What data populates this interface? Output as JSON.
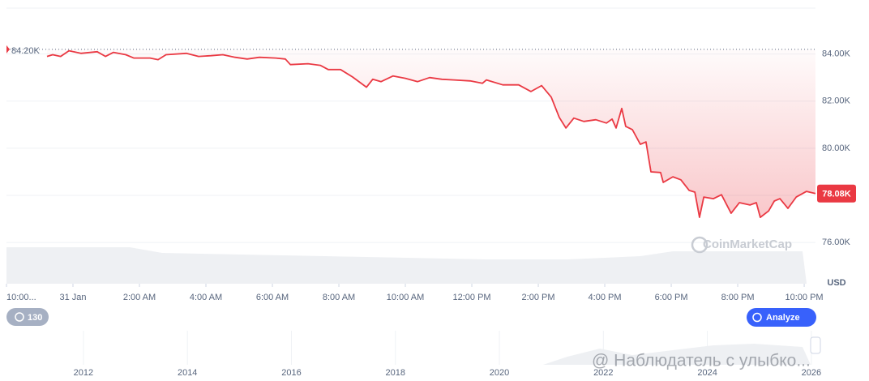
{
  "chart_data": {
    "type": "line",
    "color": "#ea3943",
    "x": [
      -0.78,
      -0.61,
      -0.37,
      -0.12,
      0.24,
      0.73,
      0.98,
      1.22,
      1.59,
      1.83,
      2.32,
      2.56,
      2.8,
      3.41,
      3.78,
      4.15,
      4.51,
      4.88,
      5.24,
      5.61,
      6.1,
      6.39,
      6.54,
      7.07,
      7.44,
      7.68,
      8.05,
      8.41,
      8.83,
      9.02,
      9.27,
      9.63,
      10.0,
      10.37,
      10.73,
      11.1,
      11.46,
      11.95,
      12.32,
      12.44,
      12.93,
      13.41,
      13.78,
      14.1,
      14.39,
      14.63,
      14.83,
      15.07,
      15.37,
      15.73,
      16.05,
      16.22,
      16.34,
      16.51,
      16.63,
      16.83,
      17.07,
      17.24,
      17.39,
      17.68,
      17.76,
      18.05,
      18.29,
      18.54,
      18.71,
      18.85,
      18.98,
      19.27,
      19.51,
      19.8,
      20.05,
      20.37,
      20.56,
      20.68,
      20.93,
      21.1,
      21.27,
      21.51,
      21.76,
      22.07,
      22.34
    ],
    "values": [
      83900,
      83970,
      83900,
      84140,
      84030,
      84100,
      83900,
      84070,
      83970,
      83830,
      83830,
      83760,
      83970,
      84030,
      83900,
      83930,
      83970,
      83860,
      83790,
      83860,
      83830,
      83790,
      83550,
      83590,
      83520,
      83340,
      83340,
      83030,
      82590,
      82930,
      82830,
      83070,
      82970,
      82830,
      83000,
      82930,
      82900,
      82860,
      82760,
      82900,
      82690,
      82690,
      82410,
      82660,
      82170,
      81310,
      80860,
      81280,
      81140,
      81210,
      81070,
      81240,
      80860,
      81690,
      80930,
      80790,
      80170,
      80270,
      79000,
      78970,
      78550,
      78790,
      78660,
      78210,
      78140,
      77070,
      77930,
      77860,
      78030,
      77240,
      77690,
      77590,
      77690,
      77070,
      77340,
      77760,
      77860,
      77450,
      77930,
      78170,
      78080
    ],
    "xlim": [
      -2,
      22.34
    ],
    "ylim": [
      74250,
      85950
    ],
    "yticks": [
      {
        "value": 76000,
        "label": "76.00K"
      },
      {
        "value": 78000,
        "label": "78.00K"
      },
      {
        "value": 80000,
        "label": "80.00K"
      },
      {
        "value": 82000,
        "label": "82.00K"
      },
      {
        "value": 84000,
        "label": "84.00K"
      }
    ],
    "xticks": [
      {
        "value": -2,
        "label": "10:00..."
      },
      {
        "value": 0,
        "label": "31 Jan"
      },
      {
        "value": 2,
        "label": "2:00 AM"
      },
      {
        "value": 4,
        "label": "4:00 AM"
      },
      {
        "value": 6,
        "label": "6:00 AM"
      },
      {
        "value": 8,
        "label": "8:00 AM"
      },
      {
        "value": 10,
        "label": "10:00 AM"
      },
      {
        "value": 12,
        "label": "12:00 PM"
      },
      {
        "value": 14,
        "label": "2:00 PM"
      },
      {
        "value": 16,
        "label": "4:00 PM"
      },
      {
        "value": 18,
        "label": "6:00 PM"
      },
      {
        "value": 20,
        "label": "8:00 PM"
      },
      {
        "value": 22,
        "label": "10:00 PM"
      }
    ],
    "grid": true,
    "reference": {
      "value": 84200,
      "label": "84.20K"
    },
    "last_price": {
      "value": 78080,
      "label": "78.08K"
    },
    "unit": "USD",
    "watermark": "CoinMarketCap",
    "navigator": {
      "xlim": [
        2010.52,
        2026.08
      ],
      "xticks": [
        2012,
        2014,
        2016,
        2018,
        2020,
        2022,
        2024,
        2026
      ]
    }
  },
  "ui": {
    "history_badge": 130,
    "analyze_button": "Analyze",
    "overlay_watermark": "@ Наблюдатель с улыбко..."
  }
}
